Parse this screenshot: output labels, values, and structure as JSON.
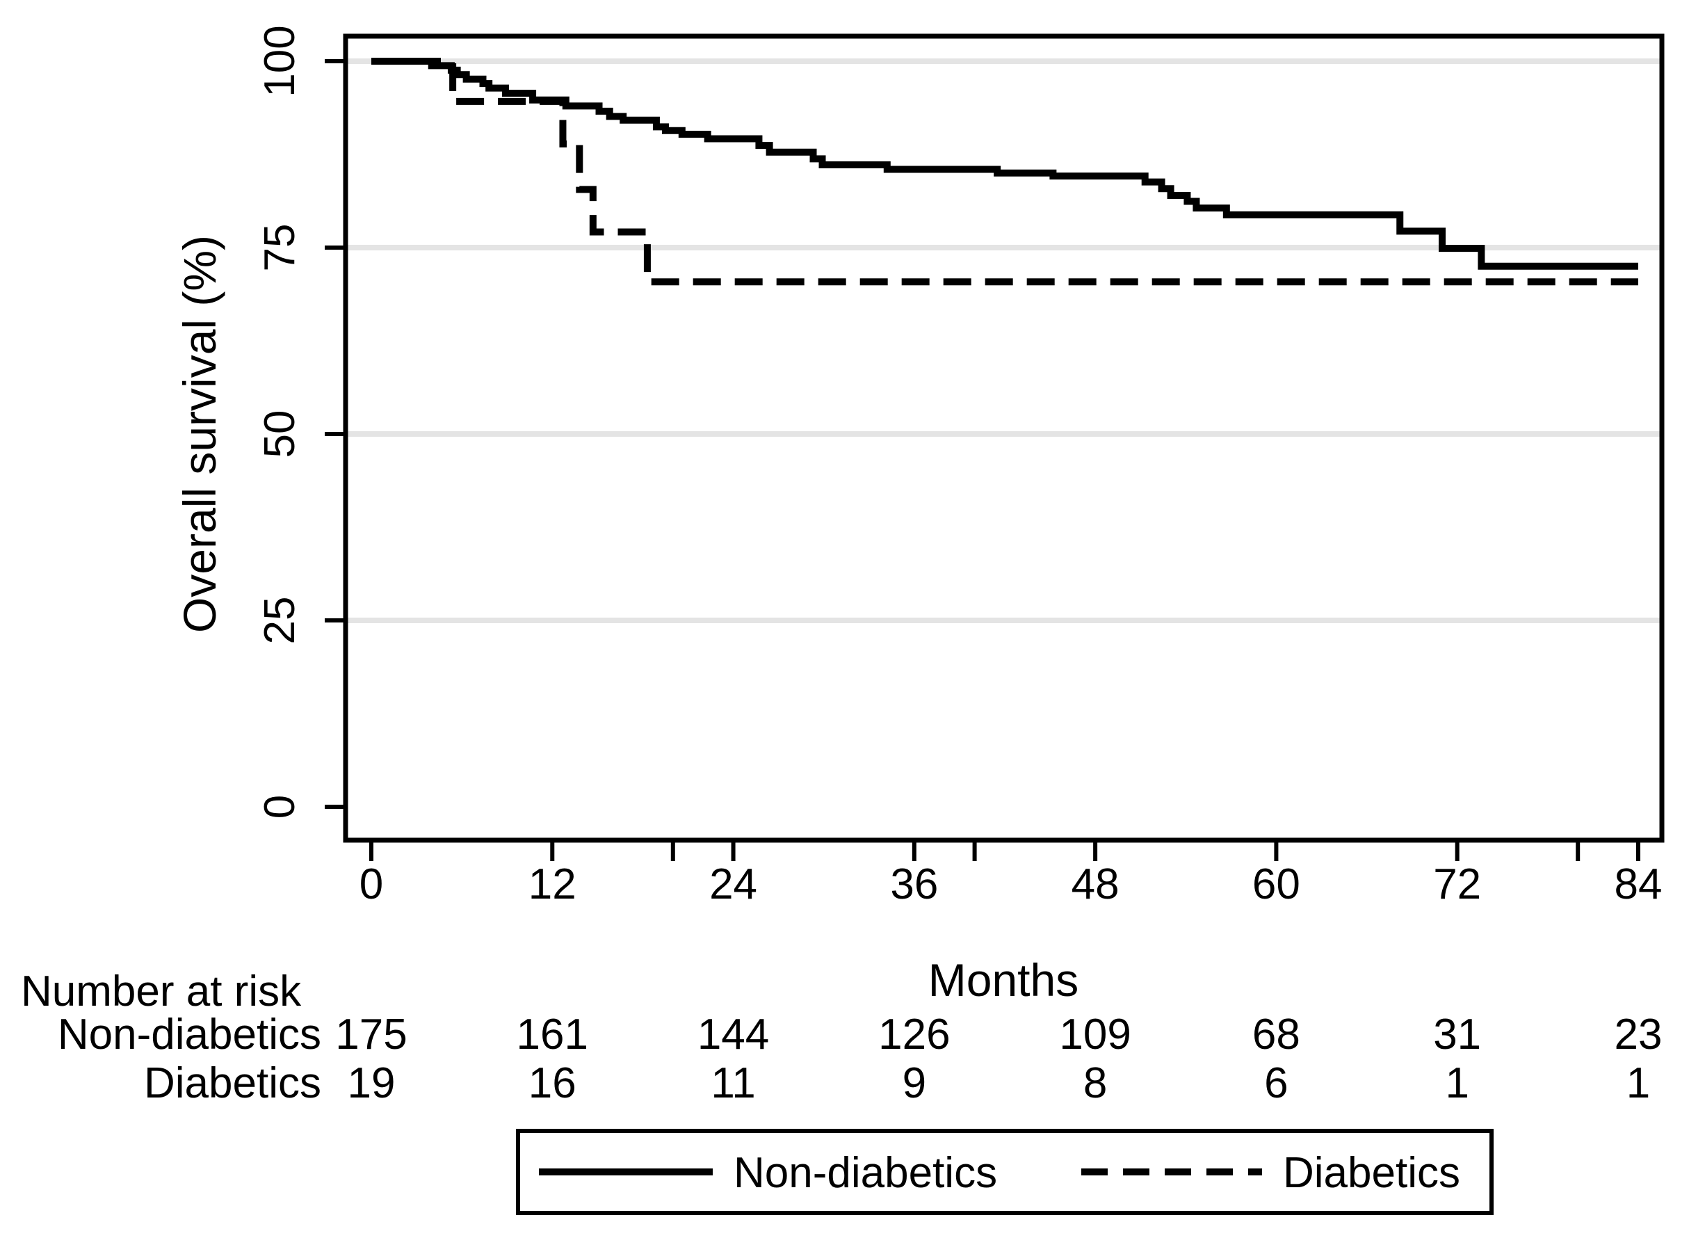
{
  "figure": {
    "background": "#ffffff",
    "line_color": "#000000",
    "gridline_color": "#e4e4e4"
  },
  "chart_data": {
    "type": "line",
    "subtype": "kaplan-meier-step",
    "title": "",
    "xlabel": "Months",
    "ylabel": "Overall survival (%)",
    "xlim": [
      0,
      84
    ],
    "ylim": [
      0,
      100
    ],
    "xticks_labeled": [
      0,
      12,
      24,
      36,
      48,
      60,
      72,
      84
    ],
    "xticks_minor": [
      20,
      40,
      80
    ],
    "yticks": [
      0,
      25,
      50,
      75,
      100
    ],
    "grid_y": [
      25,
      50,
      75,
      100
    ],
    "grid_on": true,
    "legend_position": "bottom",
    "series": [
      {
        "name": "Non-diabetics",
        "line_style": "solid",
        "color": "#000000",
        "points": [
          [
            0,
            100
          ],
          [
            4,
            99.4
          ],
          [
            5.3,
            98.8
          ],
          [
            5.7,
            98.2
          ],
          [
            6.3,
            97.6
          ],
          [
            7.4,
            97.0
          ],
          [
            7.8,
            96.4
          ],
          [
            8.9,
            95.7
          ],
          [
            10.7,
            94.8
          ],
          [
            12.9,
            94.0
          ],
          [
            15.1,
            93.3
          ],
          [
            15.8,
            92.6
          ],
          [
            16.7,
            92.1
          ],
          [
            18.9,
            91.2
          ],
          [
            19.5,
            90.7
          ],
          [
            20.6,
            90.2
          ],
          [
            22.3,
            89.6
          ],
          [
            25.7,
            88.7
          ],
          [
            26.4,
            87.8
          ],
          [
            29.3,
            86.9
          ],
          [
            29.9,
            86.1
          ],
          [
            34.2,
            85.5
          ],
          [
            41.5,
            85.0
          ],
          [
            45.2,
            84.6
          ],
          [
            51.3,
            83.8
          ],
          [
            52.4,
            82.9
          ],
          [
            53.0,
            82.0
          ],
          [
            54.1,
            81.2
          ],
          [
            54.7,
            80.3
          ],
          [
            56.7,
            79.4
          ],
          [
            68.2,
            77.2
          ],
          [
            71.0,
            74.9
          ],
          [
            73.6,
            72.5
          ],
          [
            84,
            72.5
          ]
        ]
      },
      {
        "name": "Diabetics",
        "line_style": "dashed",
        "color": "#000000",
        "points": [
          [
            0,
            100
          ],
          [
            5.4,
            94.6
          ],
          [
            12.7,
            88.9
          ],
          [
            13.8,
            82.8
          ],
          [
            14.7,
            77.1
          ],
          [
            18.3,
            70.4
          ],
          [
            84,
            70.4
          ]
        ]
      }
    ],
    "risk_table": {
      "title": "Number at risk",
      "timepoints": [
        0,
        12,
        24,
        36,
        48,
        60,
        72,
        84
      ],
      "rows": [
        {
          "label": "Non-diabetics",
          "counts": [
            175,
            161,
            144,
            126,
            109,
            68,
            31,
            23
          ]
        },
        {
          "label": "Diabetics",
          "counts": [
            19,
            16,
            11,
            9,
            8,
            6,
            1,
            1
          ]
        }
      ]
    }
  }
}
